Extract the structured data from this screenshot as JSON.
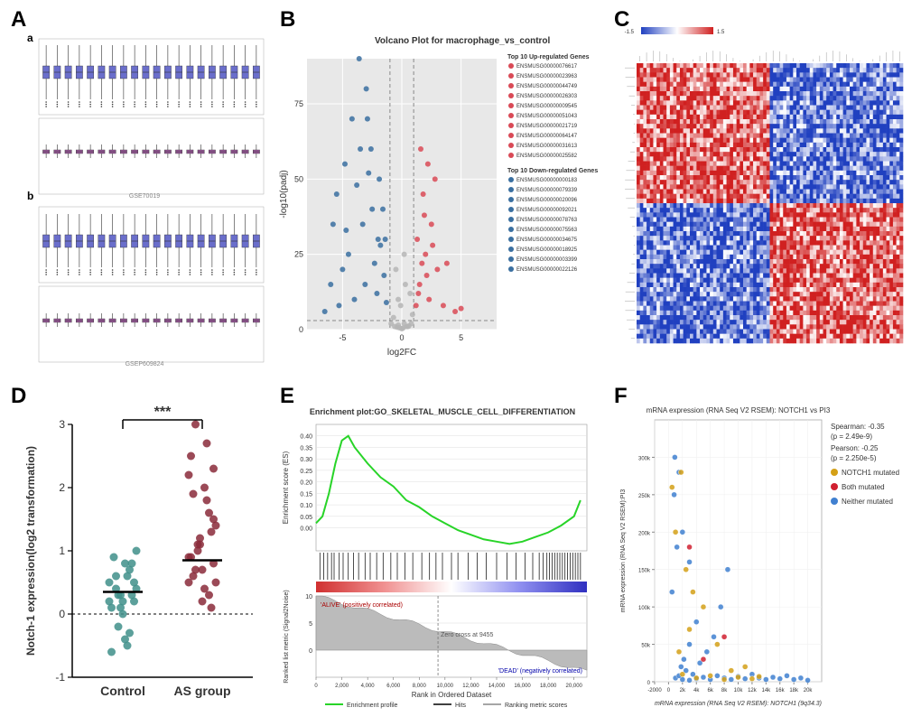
{
  "labels": {
    "A": "A",
    "B": "B",
    "C": "C",
    "D": "D",
    "E": "E",
    "F": "F",
    "a": "a",
    "b": "b"
  },
  "panelA": {
    "datasets": [
      {
        "label": "GSE70019",
        "n_samples": 20,
        "before_color": "#6a6ecb",
        "after_color": "#a05aa0",
        "before_median": 8.5,
        "before_iqr": [
          7.8,
          9.2
        ],
        "after_median": 8.5,
        "after_iqr": [
          8.3,
          8.7
        ],
        "before_whisker": [
          5.5,
          11.5
        ],
        "after_whisker": [
          7.8,
          9.3
        ]
      },
      {
        "label": "GSEP609824",
        "n_samples": 20,
        "before_color": "#6a6ecb",
        "after_color": "#a05aa0",
        "before_median": 8.4,
        "before_iqr": [
          7.7,
          9.1
        ],
        "after_median": 8.4,
        "after_iqr": [
          8.2,
          8.6
        ],
        "before_whisker": [
          5.5,
          11.4
        ],
        "after_whisker": [
          7.7,
          9.2
        ]
      }
    ],
    "y_range": [
      4,
      12
    ]
  },
  "panelB": {
    "title": "Volcano Plot for macrophage_vs_control",
    "xlabel": "log2FC",
    "ylabel": "-log10(padj)",
    "xlim": [
      -8,
      8
    ],
    "xticks": [
      -5,
      0,
      5
    ],
    "ylim": [
      0,
      90
    ],
    "yticks": [
      0,
      25,
      50,
      75
    ],
    "bg_color": "#e8e8e8",
    "threshold_x": [
      -1,
      1
    ],
    "threshold_y": 3,
    "colors": {
      "up": "#d94a56",
      "down": "#3a6fa0",
      "ns": "#b5b5b5"
    },
    "up_title": "Top 10 Up-regulated Genes",
    "down_title": "Top 10 Down-regulated Genes",
    "up_genes": [
      "ENSMUSG00000076617",
      "ENSMUSG00000023963",
      "ENSMUSG00000044749",
      "ENSMUSG00000026303",
      "ENSMUSG00000009545",
      "ENSMUSG00000051043",
      "ENSMUSG00000021719",
      "ENSMUSG00000064147",
      "ENSMUSG00000031613",
      "ENSMUSG00000025582"
    ],
    "down_genes": [
      "ENSMUSG00000000183",
      "ENSMUSG00000079339",
      "ENSMUSG00000020096",
      "ENSMUSG00000092021",
      "ENSMUSG00000078763",
      "ENSMUSG00000075563",
      "ENSMUSG00000034675",
      "ENSMUSG00000018925",
      "ENSMUSG00000003399",
      "ENSMUSG00000022126"
    ],
    "points_down": [
      [
        -5.5,
        45
      ],
      [
        -4.8,
        55
      ],
      [
        -4.2,
        70
      ],
      [
        -3.5,
        60
      ],
      [
        -3.0,
        80
      ],
      [
        -2.5,
        40
      ],
      [
        -2.0,
        30
      ],
      [
        -5.0,
        20
      ],
      [
        -6.0,
        15
      ],
      [
        -4.5,
        25
      ],
      [
        -3.8,
        48
      ],
      [
        -2.8,
        52
      ],
      [
        -3.3,
        35
      ],
      [
        -2.3,
        22
      ],
      [
        -1.5,
        18
      ],
      [
        -1.8,
        28
      ],
      [
        -4.0,
        10
      ],
      [
        -5.3,
        8
      ],
      [
        -2.1,
        12
      ],
      [
        -1.3,
        9
      ],
      [
        -6.5,
        6
      ],
      [
        -2.6,
        60
      ],
      [
        -3.1,
        15
      ],
      [
        -4.7,
        33
      ],
      [
        -1.6,
        40
      ],
      [
        -2.9,
        70
      ],
      [
        -3.6,
        90
      ],
      [
        -1.9,
        50
      ],
      [
        -1.4,
        30
      ],
      [
        -5.8,
        35
      ]
    ],
    "points_up": [
      [
        1.5,
        15
      ],
      [
        2.0,
        25
      ],
      [
        2.5,
        35
      ],
      [
        3.0,
        20
      ],
      [
        1.8,
        45
      ],
      [
        2.3,
        10
      ],
      [
        3.5,
        8
      ],
      [
        4.5,
        6
      ],
      [
        1.3,
        30
      ],
      [
        2.8,
        50
      ],
      [
        1.6,
        60
      ],
      [
        2.1,
        18
      ],
      [
        1.4,
        12
      ],
      [
        3.8,
        22
      ],
      [
        1.9,
        38
      ],
      [
        2.6,
        28
      ],
      [
        1.2,
        8
      ],
      [
        5.0,
        7
      ],
      [
        2.2,
        55
      ],
      [
        1.7,
        22
      ]
    ],
    "points_ns": [
      [
        0.2,
        2
      ],
      [
        0.5,
        1
      ],
      [
        -0.3,
        1.5
      ],
      [
        0.8,
        2
      ],
      [
        -0.6,
        1
      ],
      [
        0.1,
        0.5
      ],
      [
        -0.9,
        2
      ],
      [
        0.4,
        1
      ],
      [
        -0.4,
        0.8
      ],
      [
        0.6,
        1.2
      ],
      [
        0.0,
        0.3
      ],
      [
        -0.2,
        0.6
      ],
      [
        0.3,
        15
      ],
      [
        -0.5,
        20
      ],
      [
        0.7,
        12
      ],
      [
        -0.1,
        8
      ],
      [
        0.9,
        5
      ],
      [
        -0.7,
        4
      ],
      [
        0.2,
        25
      ],
      [
        -0.3,
        10
      ]
    ]
  },
  "panelC": {
    "scale_min": -1.5,
    "scale_max": 1.5,
    "scale_colors": [
      "#2040c0",
      "#ffffff",
      "#d02020"
    ],
    "rows": 60,
    "cols": 80,
    "seed": 17
  },
  "panelD": {
    "ylabel": "Notch-1 expression(log2 transformation)",
    "groups": [
      "Control",
      "AS group"
    ],
    "sig": "***",
    "ylim": [
      -1,
      3
    ],
    "yticks": [
      -1,
      0,
      1,
      2,
      3
    ],
    "colors": {
      "Control": "#3f8f8a",
      "AS group": "#8a2a3a"
    },
    "median": {
      "Control": 0.35,
      "AS group": 0.85
    },
    "control_points": [
      0.2,
      0.5,
      -0.3,
      0.8,
      0.1,
      0.4,
      -0.6,
      1.0,
      0.3,
      0.6,
      0.0,
      -0.2,
      0.9,
      0.5,
      0.2,
      0.7,
      -0.4,
      0.3,
      0.6,
      0.1,
      0.4,
      0.8,
      -0.5,
      0.2,
      0.3
    ],
    "as_points": [
      0.9,
      1.5,
      0.3,
      2.0,
      1.1,
      0.7,
      2.5,
      0.5,
      1.3,
      1.8,
      0.2,
      1.0,
      0.6,
      2.2,
      0.8,
      1.6,
      0.4,
      1.2,
      3.0,
      0.9,
      1.4,
      0.1,
      2.7,
      0.7,
      1.1,
      1.9,
      0.5,
      2.3
    ]
  },
  "panelE": {
    "title": "Enrichment plot:GO_SKELETAL_MUSCLE_CELL_DIFFERENTIATION",
    "es_color": "#28d428",
    "es_label": "Enrichment score (ES)",
    "metric_label": "Ranked list metric (Signal2Noise)",
    "x_label": "Rank in Ordered Dataset",
    "xlim": [
      0,
      21000
    ],
    "xticks": [
      0,
      2000,
      4000,
      6000,
      8000,
      10000,
      12000,
      14000,
      16000,
      18000,
      20000
    ],
    "es_ylim": [
      -0.1,
      0.45
    ],
    "es_yticks": [
      0.0,
      0.05,
      0.1,
      0.15,
      0.2,
      0.25,
      0.3,
      0.35,
      0.4
    ],
    "metric_ylim": [
      -5,
      10
    ],
    "metric_yticks": [
      0,
      5,
      10
    ],
    "zero_cross": 9455,
    "zero_label": "Zero cross at 9455",
    "pos_label": "'ALIVE' (positively correlated)",
    "neg_label": "'DEAD' (negatively correlated)",
    "legend": [
      "Enrichment profile",
      "Hits",
      "Ranking metric scores"
    ],
    "gradient_colors": [
      "#d03030",
      "#f09090",
      "#ffffff",
      "#9090f0",
      "#3030c0"
    ],
    "es_curve": [
      [
        0,
        0.02
      ],
      [
        500,
        0.05
      ],
      [
        1000,
        0.15
      ],
      [
        1500,
        0.28
      ],
      [
        2000,
        0.38
      ],
      [
        2500,
        0.4
      ],
      [
        3000,
        0.35
      ],
      [
        4000,
        0.28
      ],
      [
        5000,
        0.22
      ],
      [
        6000,
        0.18
      ],
      [
        7000,
        0.12
      ],
      [
        8000,
        0.09
      ],
      [
        9000,
        0.05
      ],
      [
        10000,
        0.02
      ],
      [
        11000,
        -0.01
      ],
      [
        12000,
        -0.03
      ],
      [
        13000,
        -0.05
      ],
      [
        14000,
        -0.06
      ],
      [
        15000,
        -0.07
      ],
      [
        16000,
        -0.06
      ],
      [
        17000,
        -0.04
      ],
      [
        18000,
        -0.02
      ],
      [
        19000,
        0.01
      ],
      [
        20000,
        0.05
      ],
      [
        20500,
        0.12
      ]
    ],
    "hits": [
      300,
      600,
      900,
      1200,
      1400,
      1800,
      2100,
      2500,
      2900,
      3300,
      3800,
      4200,
      4700,
      5200,
      5800,
      6300,
      6900,
      7500,
      8200,
      8800,
      9300,
      9800,
      10500,
      11000,
      11800,
      12500,
      13200,
      14000,
      14800,
      15500,
      16200,
      16800,
      17300,
      17600,
      17900,
      18100,
      18300,
      18500,
      18700,
      18900,
      19100,
      19300,
      19500,
      19700,
      19900,
      20100,
      20300,
      20500
    ]
  },
  "panelF": {
    "title": "mRNA expression (RNA Seq V2 RSEM): NOTCH1 vs PI3",
    "xlabel": "mRNA expression (RNA Seq V2 RSEM): NOTCH1 (9q34.3)",
    "ylabel": "mRNA expression (RNA Seq V2 RSEM):PI3",
    "xlim": [
      -2000,
      22000
    ],
    "xticks": [
      "-2000",
      "0",
      "2k",
      "4k",
      "6k",
      "8k",
      "10k",
      "12k",
      "14k",
      "16k",
      "18k",
      "20k"
    ],
    "ylim": [
      0,
      350000
    ],
    "yticks": [
      "0",
      "50k",
      "100k",
      "150k",
      "200k",
      "250k",
      "300k"
    ],
    "legend": {
      "spearman": "Spearman: -0.35",
      "spearman_p": "(p = 2.49e-9)",
      "pearson": "Pearson: -0.25",
      "pearson_p": "(p = 2.250e-5)",
      "notch1": "NOTCH1 mutated",
      "both": "Both mutated",
      "neither": "Neither mutated"
    },
    "colors": {
      "notch1": "#d4a017",
      "both": "#d02030",
      "neither": "#4080d0"
    },
    "neither_points": [
      [
        1000,
        5000
      ],
      [
        2000,
        3000
      ],
      [
        1500,
        8000
      ],
      [
        3000,
        2000
      ],
      [
        2500,
        15000
      ],
      [
        4000,
        4000
      ],
      [
        1800,
        20000
      ],
      [
        3500,
        10000
      ],
      [
        5000,
        6000
      ],
      [
        2200,
        30000
      ],
      [
        6000,
        3000
      ],
      [
        4500,
        25000
      ],
      [
        7000,
        8000
      ],
      [
        3000,
        50000
      ],
      [
        8000,
        5000
      ],
      [
        5500,
        40000
      ],
      [
        9000,
        3000
      ],
      [
        4000,
        80000
      ],
      [
        10000,
        7000
      ],
      [
        6500,
        60000
      ],
      [
        11000,
        4000
      ],
      [
        12000,
        10000
      ],
      [
        7500,
        100000
      ],
      [
        13000,
        5000
      ],
      [
        14000,
        3000
      ],
      [
        8500,
        150000
      ],
      [
        15000,
        6000
      ],
      [
        16000,
        4000
      ],
      [
        17000,
        8000
      ],
      [
        18000,
        3000
      ],
      [
        19000,
        5000
      ],
      [
        20000,
        2000
      ],
      [
        500,
        120000
      ],
      [
        1200,
        180000
      ],
      [
        800,
        250000
      ],
      [
        2000,
        200000
      ],
      [
        1500,
        280000
      ],
      [
        3000,
        160000
      ],
      [
        900,
        300000
      ]
    ],
    "notch1_points": [
      [
        2000,
        10000
      ],
      [
        4000,
        5000
      ],
      [
        1500,
        40000
      ],
      [
        6000,
        8000
      ],
      [
        3000,
        70000
      ],
      [
        8000,
        3000
      ],
      [
        5000,
        100000
      ],
      [
        10000,
        6000
      ],
      [
        2500,
        150000
      ],
      [
        12000,
        4000
      ],
      [
        1000,
        200000
      ],
      [
        7000,
        50000
      ],
      [
        9000,
        15000
      ],
      [
        1800,
        280000
      ],
      [
        11000,
        20000
      ],
      [
        500,
        260000
      ],
      [
        3500,
        120000
      ],
      [
        13000,
        7000
      ]
    ],
    "both_points": [
      [
        5000,
        30000
      ],
      [
        8000,
        60000
      ],
      [
        3000,
        180000
      ]
    ]
  }
}
